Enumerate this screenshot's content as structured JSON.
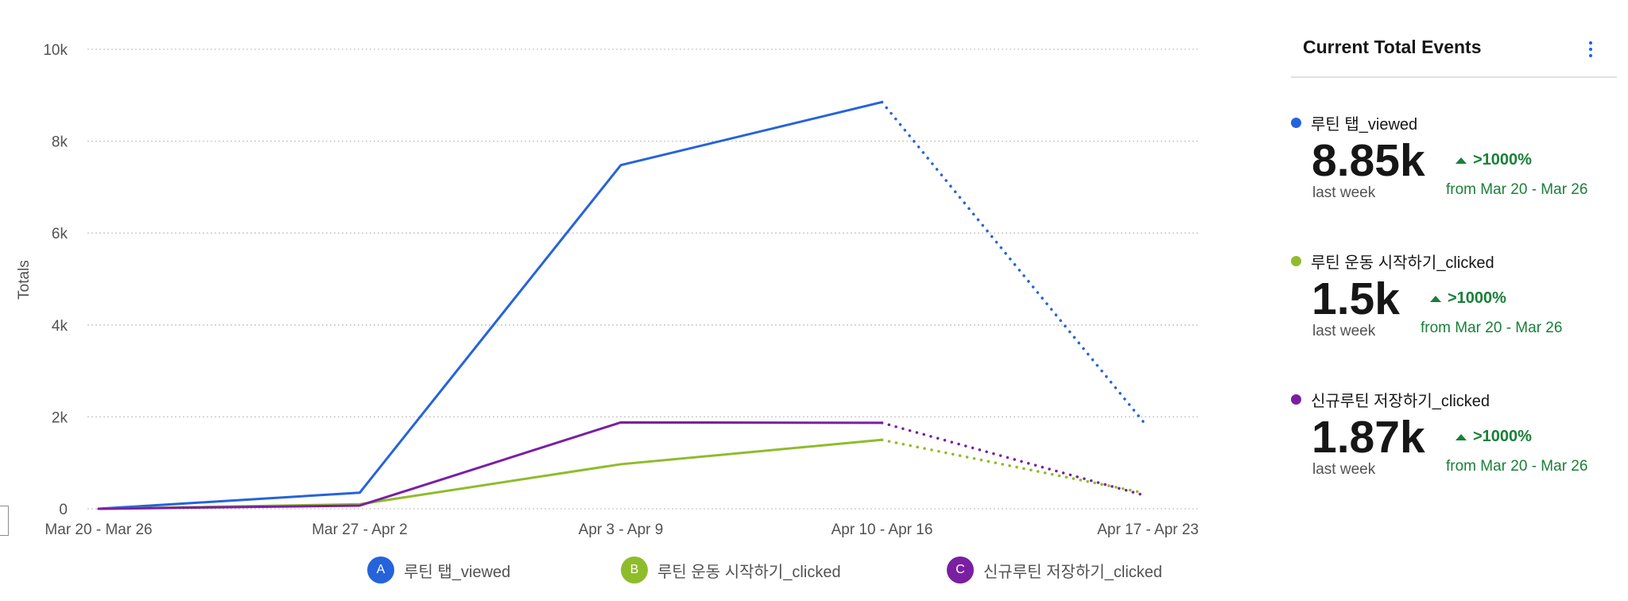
{
  "chart_data": {
    "type": "line",
    "title": "",
    "xlabel": "",
    "ylabel": "Totals",
    "categories": [
      "Mar 20 - Mar 26",
      "Mar 27 - Apr 2",
      "Apr 3 - Apr 9",
      "Apr 10 - Apr 16",
      "Apr 17 - Apr 23"
    ],
    "ylim": [
      0,
      10000
    ],
    "yticks": [
      0,
      2000,
      4000,
      6000,
      8000,
      10000
    ],
    "ytick_labels": [
      "0",
      "2k",
      "4k",
      "6k",
      "8k",
      "10k"
    ],
    "grid": true,
    "legend_position": "bottom",
    "dotted_from_index": 3,
    "series": [
      {
        "name": "루틴 탭_viewed",
        "badge": "A",
        "color": "#2563db",
        "values": [
          0,
          350,
          7480,
          8850,
          1900
        ]
      },
      {
        "name": "루틴 운동 시작하기_clicked",
        "badge": "B",
        "color": "#8fbc2a",
        "values": [
          0,
          100,
          970,
          1500,
          350
        ]
      },
      {
        "name": "신규루틴 저장하기_clicked",
        "badge": "C",
        "color": "#7a1fa2",
        "values": [
          0,
          70,
          1880,
          1870,
          300
        ]
      }
    ]
  },
  "panel": {
    "title": "Current Total Events",
    "menu_icon": "kebab-vertical-icon",
    "events": [
      {
        "name": "루틴 탭_viewed",
        "color": "#2563db",
        "value": "8.85k",
        "period": "last week",
        "change": ">1000%",
        "from": "from Mar 20 - Mar 26"
      },
      {
        "name": "루틴 운동 시작하기_clicked",
        "color": "#8fbc2a",
        "value": "1.5k",
        "period": "last week",
        "change": ">1000%",
        "from": "from Mar 20 - Mar 26"
      },
      {
        "name": "신규루틴 저장하기_clicked",
        "color": "#7a1fa2",
        "value": "1.87k",
        "period": "last week",
        "change": ">1000%",
        "from": "from Mar 20 - Mar 26"
      }
    ]
  }
}
